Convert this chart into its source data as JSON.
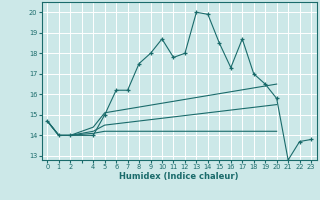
{
  "xlabel": "Humidex (Indice chaleur)",
  "xlim": [
    -0.5,
    23.5
  ],
  "ylim": [
    12.8,
    20.5
  ],
  "yticks": [
    13,
    14,
    15,
    16,
    17,
    18,
    19,
    20
  ],
  "bg_color": "#cce8e8",
  "grid_color": "#ffffff",
  "line_color": "#1a6b6b",
  "line1_x": [
    0,
    1,
    2,
    4,
    5,
    6,
    7,
    8,
    9,
    10,
    11,
    12,
    13,
    14,
    15,
    16,
    17,
    18,
    19,
    20,
    21,
    22,
    23
  ],
  "line1_y": [
    14.7,
    14.0,
    14.0,
    14.0,
    15.0,
    16.2,
    16.2,
    17.5,
    18.0,
    18.7,
    17.8,
    18.0,
    20.0,
    19.9,
    18.5,
    17.3,
    18.7,
    17.0,
    16.5,
    15.8,
    12.8,
    13.7,
    13.8
  ],
  "line2_x": [
    0,
    1,
    2,
    4,
    5,
    20
  ],
  "line2_y": [
    14.7,
    14.0,
    14.0,
    14.1,
    14.2,
    14.2
  ],
  "line3_x": [
    0,
    1,
    2,
    4,
    5,
    20
  ],
  "line3_y": [
    14.7,
    14.0,
    14.0,
    14.2,
    14.5,
    15.5
  ],
  "line4_x": [
    0,
    1,
    2,
    4,
    5,
    20
  ],
  "line4_y": [
    14.7,
    14.0,
    14.0,
    14.4,
    15.1,
    16.5
  ]
}
